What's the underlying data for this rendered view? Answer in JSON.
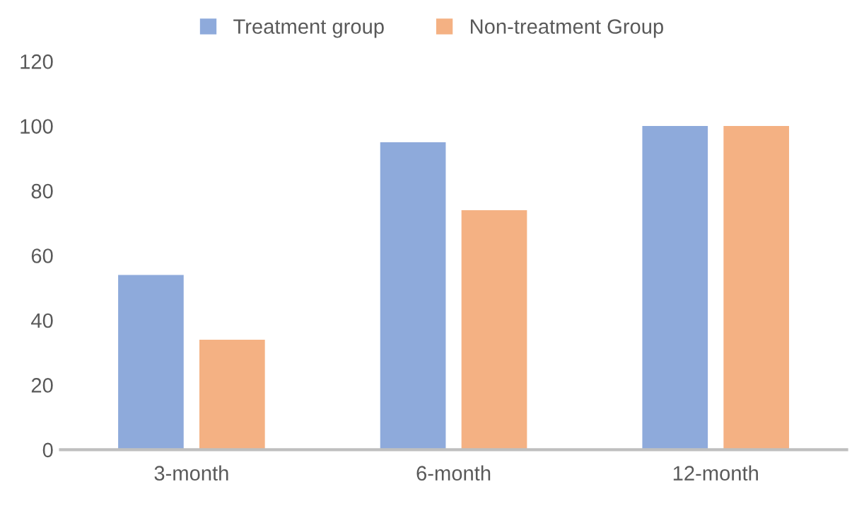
{
  "chart_data": {
    "type": "bar",
    "categories": [
      "3-month",
      "6-month",
      "12-month"
    ],
    "series": [
      {
        "name": "Treatment group",
        "color": "#8eaadb",
        "values": [
          54,
          95,
          100
        ]
      },
      {
        "name": "Non-treatment Group",
        "color": "#f4b183",
        "values": [
          34,
          74,
          100
        ]
      }
    ],
    "ylim": [
      0,
      120
    ],
    "yticks": [
      0,
      20,
      40,
      60,
      80,
      100,
      120
    ],
    "grid": false,
    "legend": "top"
  }
}
